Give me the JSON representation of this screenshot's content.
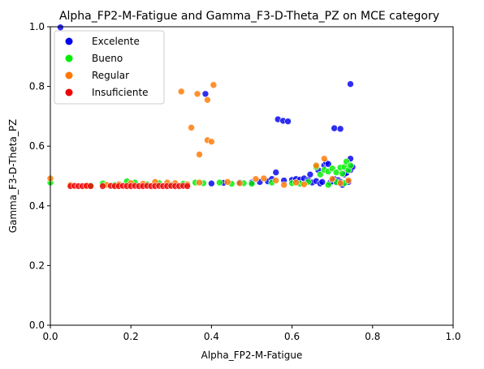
{
  "chart_data": {
    "type": "scatter",
    "title": "Alpha_FP2-M-Fatigue and Gamma_F3-D-Theta_PZ on MCE category",
    "xlabel": "Alpha_FP2-M-Fatigue",
    "ylabel": "Gamma_F3-D-Theta_PZ",
    "xlim": [
      0,
      1
    ],
    "ylim": [
      0,
      1
    ],
    "xticks": [
      "0.0",
      "0.2",
      "0.4",
      "0.6",
      "0.8",
      "1.0"
    ],
    "yticks": [
      "0.0",
      "0.2",
      "0.4",
      "0.6",
      "0.8",
      "1.0"
    ],
    "grid": false,
    "legend_position": "top-left",
    "series": [
      {
        "name": "Excelente",
        "color": "#0000ee",
        "points": [
          [
            0.025,
            0.998
          ],
          [
            0.385,
            0.775
          ],
          [
            0.565,
            0.69
          ],
          [
            0.578,
            0.685
          ],
          [
            0.59,
            0.683
          ],
          [
            0.705,
            0.66
          ],
          [
            0.72,
            0.658
          ],
          [
            0.745,
            0.808
          ],
          [
            0.745,
            0.558
          ],
          [
            0.4,
            0.475
          ],
          [
            0.43,
            0.477
          ],
          [
            0.47,
            0.478
          ],
          [
            0.5,
            0.478
          ],
          [
            0.52,
            0.48
          ],
          [
            0.54,
            0.482
          ],
          [
            0.55,
            0.49
          ],
          [
            0.56,
            0.512
          ],
          [
            0.58,
            0.485
          ],
          [
            0.6,
            0.487
          ],
          [
            0.61,
            0.49
          ],
          [
            0.62,
            0.488
          ],
          [
            0.63,
            0.492
          ],
          [
            0.64,
            0.486
          ],
          [
            0.645,
            0.505
          ],
          [
            0.65,
            0.478
          ],
          [
            0.66,
            0.483
          ],
          [
            0.665,
            0.52
          ],
          [
            0.67,
            0.475
          ],
          [
            0.675,
            0.48
          ],
          [
            0.68,
            0.536
          ],
          [
            0.685,
            0.545
          ],
          [
            0.69,
            0.54
          ],
          [
            0.695,
            0.478
          ],
          [
            0.7,
            0.482
          ],
          [
            0.705,
            0.49
          ],
          [
            0.71,
            0.478
          ],
          [
            0.715,
            0.486
          ],
          [
            0.72,
            0.48
          ],
          [
            0.725,
            0.47
          ],
          [
            0.73,
            0.505
          ],
          [
            0.735,
            0.51
          ],
          [
            0.74,
            0.48
          ],
          [
            0.745,
            0.52
          ],
          [
            0.75,
            0.53
          ]
        ]
      },
      {
        "name": "Bueno",
        "color": "#00ee00",
        "points": [
          [
            0.0,
            0.478
          ],
          [
            0.1,
            0.468
          ],
          [
            0.13,
            0.475
          ],
          [
            0.16,
            0.47
          ],
          [
            0.19,
            0.482
          ],
          [
            0.21,
            0.478
          ],
          [
            0.24,
            0.472
          ],
          [
            0.27,
            0.476
          ],
          [
            0.3,
            0.47
          ],
          [
            0.33,
            0.474
          ],
          [
            0.36,
            0.478
          ],
          [
            0.38,
            0.476
          ],
          [
            0.42,
            0.478
          ],
          [
            0.45,
            0.474
          ],
          [
            0.48,
            0.476
          ],
          [
            0.5,
            0.474
          ],
          [
            0.55,
            0.478
          ],
          [
            0.6,
            0.476
          ],
          [
            0.62,
            0.474
          ],
          [
            0.64,
            0.48
          ],
          [
            0.66,
            0.53
          ],
          [
            0.67,
            0.505
          ],
          [
            0.68,
            0.52
          ],
          [
            0.69,
            0.515
          ],
          [
            0.7,
            0.525
          ],
          [
            0.71,
            0.512
          ],
          [
            0.72,
            0.528
          ],
          [
            0.725,
            0.508
          ],
          [
            0.73,
            0.53
          ],
          [
            0.735,
            0.548
          ],
          [
            0.74,
            0.52
          ],
          [
            0.745,
            0.535
          ],
          [
            0.69,
            0.47
          ],
          [
            0.71,
            0.48
          ],
          [
            0.73,
            0.476
          ]
        ]
      },
      {
        "name": "Regular",
        "color": "#ff7700",
        "points": [
          [
            0.0,
            0.492
          ],
          [
            0.325,
            0.783
          ],
          [
            0.365,
            0.775
          ],
          [
            0.39,
            0.755
          ],
          [
            0.405,
            0.805
          ],
          [
            0.35,
            0.662
          ],
          [
            0.39,
            0.62
          ],
          [
            0.4,
            0.615
          ],
          [
            0.37,
            0.572
          ],
          [
            0.05,
            0.47
          ],
          [
            0.09,
            0.468
          ],
          [
            0.14,
            0.47
          ],
          [
            0.17,
            0.472
          ],
          [
            0.2,
            0.476
          ],
          [
            0.23,
            0.474
          ],
          [
            0.26,
            0.48
          ],
          [
            0.29,
            0.478
          ],
          [
            0.31,
            0.476
          ],
          [
            0.34,
            0.472
          ],
          [
            0.37,
            0.478
          ],
          [
            0.44,
            0.48
          ],
          [
            0.47,
            0.476
          ],
          [
            0.51,
            0.49
          ],
          [
            0.53,
            0.492
          ],
          [
            0.56,
            0.485
          ],
          [
            0.58,
            0.47
          ],
          [
            0.61,
            0.478
          ],
          [
            0.63,
            0.472
          ],
          [
            0.66,
            0.535
          ],
          [
            0.68,
            0.558
          ],
          [
            0.7,
            0.49
          ],
          [
            0.72,
            0.476
          ],
          [
            0.74,
            0.485
          ]
        ]
      },
      {
        "name": "Insuficiente",
        "color": "#ee0000",
        "points": [
          [
            0.05,
            0.466
          ],
          [
            0.06,
            0.467
          ],
          [
            0.07,
            0.466
          ],
          [
            0.08,
            0.466
          ],
          [
            0.09,
            0.467
          ],
          [
            0.1,
            0.466
          ],
          [
            0.13,
            0.466
          ],
          [
            0.15,
            0.467
          ],
          [
            0.16,
            0.466
          ],
          [
            0.17,
            0.466
          ],
          [
            0.18,
            0.467
          ],
          [
            0.19,
            0.466
          ],
          [
            0.2,
            0.466
          ],
          [
            0.21,
            0.467
          ],
          [
            0.22,
            0.466
          ],
          [
            0.23,
            0.466
          ],
          [
            0.24,
            0.467
          ],
          [
            0.25,
            0.466
          ],
          [
            0.26,
            0.466
          ],
          [
            0.27,
            0.467
          ],
          [
            0.28,
            0.466
          ],
          [
            0.29,
            0.466
          ],
          [
            0.3,
            0.467
          ],
          [
            0.31,
            0.466
          ],
          [
            0.32,
            0.466
          ],
          [
            0.33,
            0.467
          ],
          [
            0.34,
            0.466
          ]
        ]
      }
    ]
  }
}
